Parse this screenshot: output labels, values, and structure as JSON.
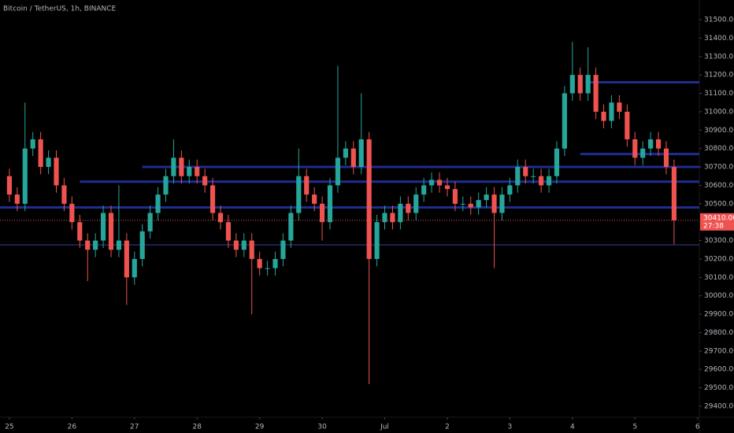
{
  "chart_data": {
    "type": "candlestick",
    "title": "Bitcoin / TetherUS, 1h, BINANCE",
    "up_color": "#26a69a",
    "down_color": "#ef5350",
    "level_color": "#1f2d8f",
    "support_color": "#3a3f9e",
    "xlim": [
      -3.6,
      264.7
    ],
    "ylim": [
      29340,
      31607
    ],
    "xticks": [
      {
        "value": 0,
        "label": "25"
      },
      {
        "value": 24,
        "label": "26"
      },
      {
        "value": 48,
        "label": "27"
      },
      {
        "value": 72,
        "label": "28"
      },
      {
        "value": 96,
        "label": "29"
      },
      {
        "value": 120,
        "label": "30"
      },
      {
        "value": 144,
        "label": "Jul"
      },
      {
        "value": 168,
        "label": "2"
      },
      {
        "value": 192,
        "label": "3"
      },
      {
        "value": 216,
        "label": "4"
      },
      {
        "value": 240,
        "label": "5"
      },
      {
        "value": 264,
        "label": "6"
      }
    ],
    "yticks": [
      {
        "value": 29400,
        "label": "29400.00"
      },
      {
        "value": 29500,
        "label": "29500.00"
      },
      {
        "value": 29600,
        "label": "29600.00"
      },
      {
        "value": 29700,
        "label": "29700.00"
      },
      {
        "value": 29800,
        "label": "29800.00"
      },
      {
        "value": 29900,
        "label": "29900.00"
      },
      {
        "value": 30000,
        "label": "30000.00"
      },
      {
        "value": 30100,
        "label": "30100.00"
      },
      {
        "value": 30200,
        "label": "30200.00"
      },
      {
        "value": 30300,
        "label": "30300.00"
      },
      {
        "value": 30400,
        "label": "30400.00"
      },
      {
        "value": 30500,
        "label": "30500.00"
      },
      {
        "value": 30600,
        "label": "30600.00"
      },
      {
        "value": 30700,
        "label": "30700.00"
      },
      {
        "value": 30800,
        "label": "30800.00"
      },
      {
        "value": 30900,
        "label": "30900.00"
      },
      {
        "value": 31000,
        "label": "31000.00"
      },
      {
        "value": 31100,
        "label": "31100.00"
      },
      {
        "value": 31200,
        "label": "31200.00"
      },
      {
        "value": 31300,
        "label": "31300.00"
      },
      {
        "value": 31400,
        "label": "31400.00"
      },
      {
        "value": 31500,
        "label": "31500.00"
      }
    ],
    "levels": [
      {
        "price": 31160,
        "from": 221
      },
      {
        "price": 30770,
        "from": 219
      },
      {
        "price": 30700,
        "from": 51
      },
      {
        "price": 30620,
        "from": 27
      },
      {
        "price": 30480,
        "from": -3.6
      }
    ],
    "support": {
      "price": 30277,
      "from": -3.6
    },
    "price_tag": "30410.00",
    "countdown": "27:38",
    "x": [
      0,
      3,
      6,
      9,
      12,
      15,
      18,
      21,
      24,
      27,
      30,
      33,
      36,
      39,
      42,
      45,
      48,
      51,
      54,
      57,
      60,
      63,
      66,
      69,
      72,
      75,
      78,
      81,
      84,
      87,
      90,
      93,
      96,
      99,
      102,
      105,
      108,
      111,
      114,
      117,
      120,
      123,
      126,
      129,
      132,
      135,
      138,
      141,
      144,
      147,
      150,
      153,
      156,
      159,
      162,
      165,
      168,
      171,
      174,
      177,
      180,
      183,
      186,
      189,
      192,
      195,
      198,
      201,
      204,
      207,
      210,
      213,
      216,
      219,
      222,
      225,
      228,
      231,
      234,
      237,
      240,
      243,
      246,
      249,
      252,
      255
    ],
    "candles": [
      [
        30650,
        30690,
        30510,
        30550
      ],
      [
        30550,
        30590,
        30460,
        30500
      ],
      [
        30500,
        31050,
        30460,
        30800
      ],
      [
        30800,
        30890,
        30760,
        30850
      ],
      [
        30850,
        30890,
        30660,
        30700
      ],
      [
        30700,
        30790,
        30660,
        30750
      ],
      [
        30750,
        30790,
        30560,
        30600
      ],
      [
        30600,
        30640,
        30460,
        30500
      ],
      [
        30500,
        30540,
        30360,
        30400
      ],
      [
        30400,
        30440,
        30260,
        30300
      ],
      [
        30300,
        30340,
        30080,
        30250
      ],
      [
        30250,
        30340,
        30210,
        30300
      ],
      [
        30300,
        30490,
        30260,
        30450
      ],
      [
        30450,
        30490,
        30210,
        30250
      ],
      [
        30250,
        30600,
        30210,
        30300
      ],
      [
        30300,
        30340,
        29950,
        30100
      ],
      [
        30100,
        30240,
        30060,
        30200
      ],
      [
        30200,
        30390,
        30160,
        30350
      ],
      [
        30350,
        30490,
        30310,
        30450
      ],
      [
        30450,
        30590,
        30410,
        30550
      ],
      [
        30550,
        30690,
        30510,
        30650
      ],
      [
        30650,
        30850,
        30610,
        30750
      ],
      [
        30750,
        30790,
        30610,
        30650
      ],
      [
        30650,
        30740,
        30610,
        30700
      ],
      [
        30700,
        30740,
        30610,
        30650
      ],
      [
        30650,
        30690,
        30560,
        30600
      ],
      [
        30600,
        30640,
        30410,
        30450
      ],
      [
        30450,
        30490,
        30360,
        30400
      ],
      [
        30400,
        30440,
        30260,
        30300
      ],
      [
        30300,
        30340,
        30210,
        30250
      ],
      [
        30250,
        30340,
        30210,
        30300
      ],
      [
        30300,
        30340,
        29900,
        30200
      ],
      [
        30200,
        30240,
        30110,
        30150
      ],
      [
        30150,
        30190,
        30110,
        30150
      ],
      [
        30150,
        30240,
        30110,
        30200
      ],
      [
        30200,
        30340,
        30160,
        30300
      ],
      [
        30300,
        30490,
        30260,
        30450
      ],
      [
        30450,
        30800,
        30410,
        30650
      ],
      [
        30650,
        30690,
        30510,
        30550
      ],
      [
        30550,
        30590,
        30460,
        30500
      ],
      [
        30500,
        30540,
        30300,
        30400
      ],
      [
        30400,
        30640,
        30360,
        30600
      ],
      [
        30600,
        31250,
        30560,
        30750
      ],
      [
        30750,
        30840,
        30710,
        30800
      ],
      [
        30800,
        30840,
        30660,
        30700
      ],
      [
        30700,
        31100,
        30660,
        30850
      ],
      [
        30850,
        30890,
        29520,
        30200
      ],
      [
        30200,
        30440,
        30160,
        30400
      ],
      [
        30400,
        30490,
        30360,
        30450
      ],
      [
        30450,
        30490,
        30360,
        30400
      ],
      [
        30400,
        30540,
        30360,
        30500
      ],
      [
        30500,
        30540,
        30410,
        30450
      ],
      [
        30450,
        30590,
        30410,
        30550
      ],
      [
        30550,
        30640,
        30510,
        30600
      ],
      [
        30600,
        30670,
        30560,
        30630
      ],
      [
        30630,
        30670,
        30560,
        30600
      ],
      [
        30600,
        30640,
        30540,
        30580
      ],
      [
        30580,
        30620,
        30460,
        30500
      ],
      [
        30500,
        30540,
        30460,
        30500
      ],
      [
        30500,
        30540,
        30440,
        30480
      ],
      [
        30480,
        30560,
        30440,
        30520
      ],
      [
        30520,
        30590,
        30480,
        30550
      ],
      [
        30550,
        30590,
        30150,
        30450
      ],
      [
        30450,
        30590,
        30410,
        30550
      ],
      [
        30550,
        30640,
        30510,
        30600
      ],
      [
        30600,
        30740,
        30560,
        30700
      ],
      [
        30700,
        30740,
        30610,
        30650
      ],
      [
        30650,
        30690,
        30610,
        30650
      ],
      [
        30650,
        30690,
        30560,
        30600
      ],
      [
        30600,
        30690,
        30560,
        30650
      ],
      [
        30650,
        30840,
        30610,
        30800
      ],
      [
        30800,
        31140,
        30760,
        31100
      ],
      [
        31100,
        31380,
        31060,
        31200
      ],
      [
        31200,
        31240,
        31060,
        31100
      ],
      [
        31100,
        31350,
        31060,
        31200
      ],
      [
        31200,
        31240,
        30960,
        31000
      ],
      [
        31000,
        31040,
        30910,
        30950
      ],
      [
        30950,
        31090,
        30910,
        31050
      ],
      [
        31050,
        31090,
        30960,
        31000
      ],
      [
        31000,
        31040,
        30810,
        30850
      ],
      [
        30850,
        30890,
        30710,
        30750
      ],
      [
        30750,
        30840,
        30710,
        30800
      ],
      [
        30800,
        30890,
        30760,
        30850
      ],
      [
        30850,
        30890,
        30760,
        30800
      ],
      [
        30800,
        30840,
        30660,
        30700
      ],
      [
        30700,
        30740,
        30280,
        30410
      ]
    ]
  }
}
